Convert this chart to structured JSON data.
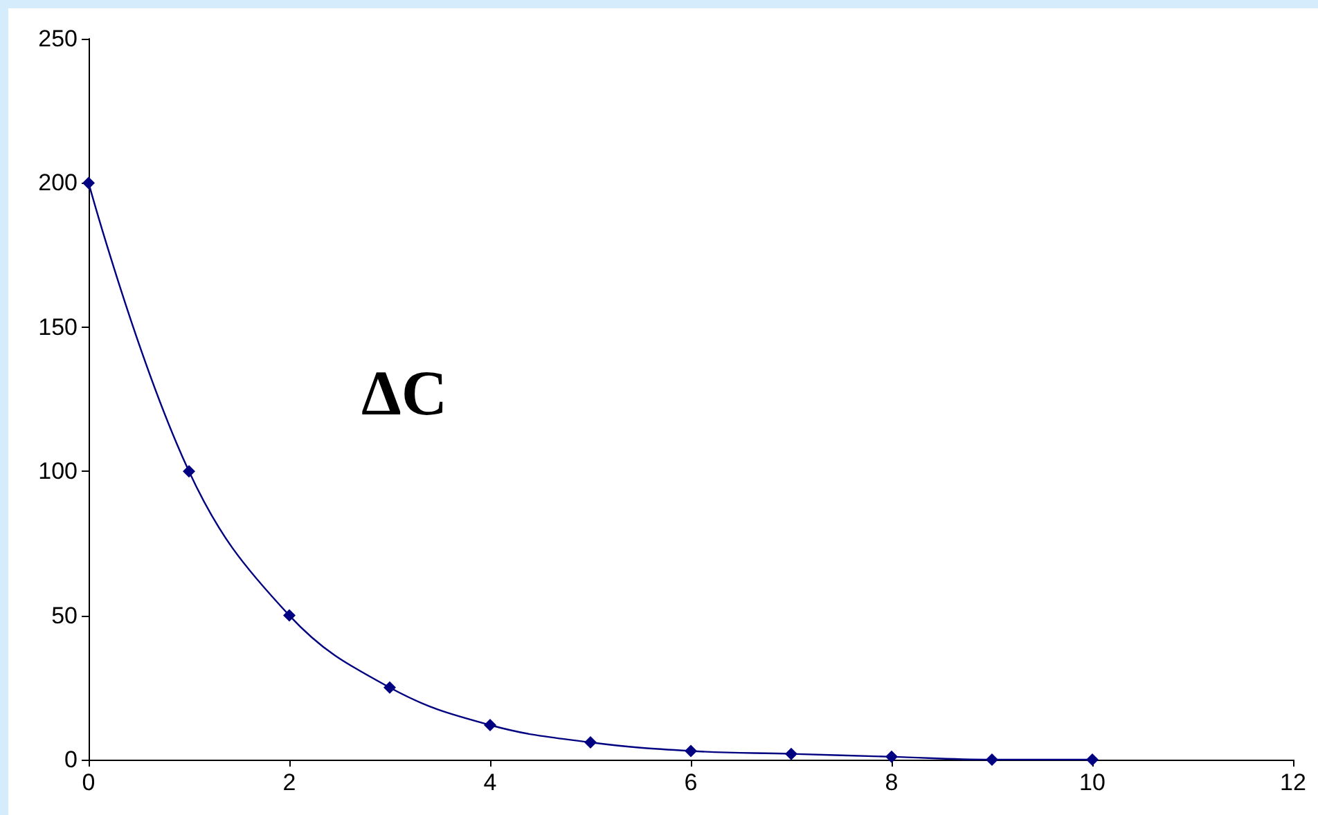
{
  "chart_data": {
    "type": "line",
    "annotations": [
      "ΔC"
    ],
    "x": [
      0,
      1,
      2,
      3,
      4,
      5,
      6,
      7,
      8,
      9,
      10
    ],
    "series": [
      {
        "color": "#000080",
        "values": [
          200,
          100,
          50,
          25,
          12,
          6,
          3,
          2,
          1,
          0,
          0
        ]
      }
    ],
    "xlim": [
      0,
      12
    ],
    "xticks": [
      0,
      2,
      4,
      6,
      8,
      10,
      12
    ],
    "ylim": [
      0,
      250
    ],
    "yticks": [
      0,
      50,
      100,
      150,
      200,
      250
    ],
    "grid": false,
    "marker": "diamond",
    "line_style": "solid"
  }
}
